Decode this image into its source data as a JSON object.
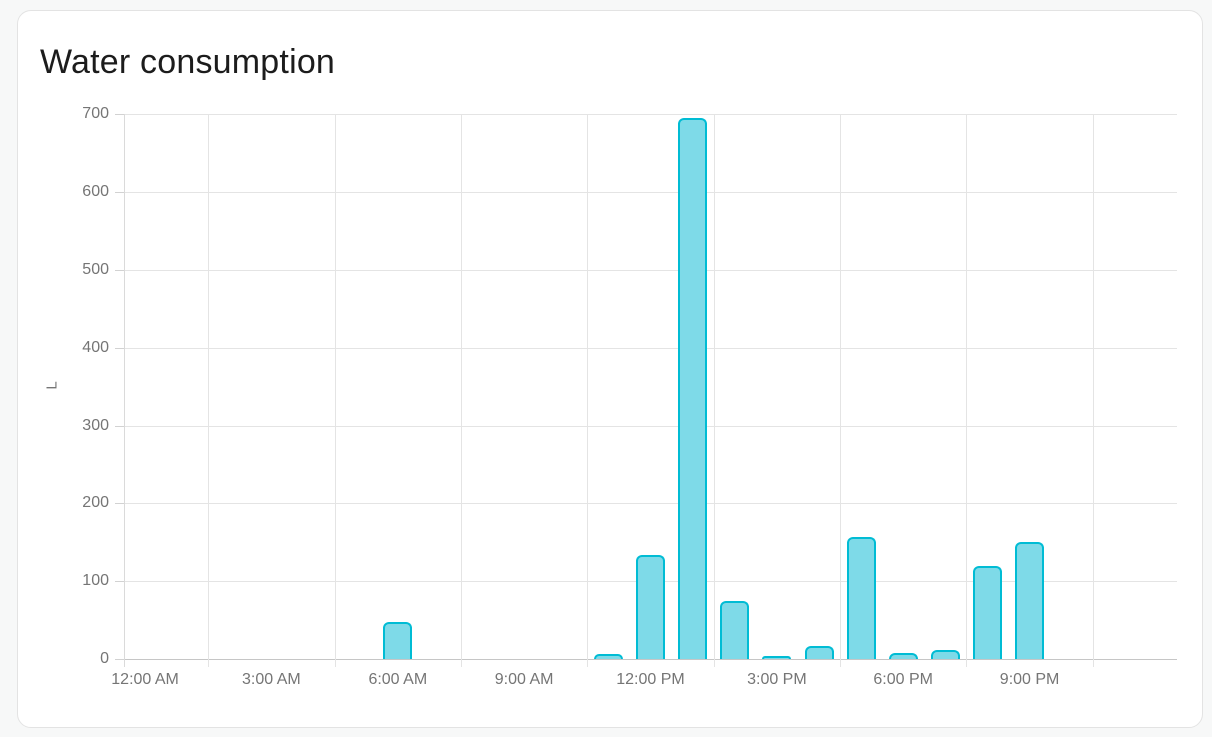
{
  "page": {
    "background": "#f7f8f8"
  },
  "card": {
    "title": "Water consumption",
    "background": "#ffffff",
    "border_color": "#e3e3e3"
  },
  "chart_data": {
    "type": "bar",
    "title": "Water consumption",
    "xlabel": "",
    "ylabel": "L",
    "unit": "L",
    "ylim": [
      0,
      700
    ],
    "y_ticks": [
      0,
      100,
      200,
      300,
      400,
      500,
      600,
      700
    ],
    "x_range_hours": [
      0,
      25
    ],
    "x_ticks": [
      {
        "hour": 0,
        "label": "12:00 AM"
      },
      {
        "hour": 3,
        "label": "3:00 AM"
      },
      {
        "hour": 6,
        "label": "6:00 AM"
      },
      {
        "hour": 9,
        "label": "9:00 AM"
      },
      {
        "hour": 12,
        "label": "12:00 PM"
      },
      {
        "hour": 15,
        "label": "3:00 PM"
      },
      {
        "hour": 18,
        "label": "6:00 PM"
      },
      {
        "hour": 21,
        "label": "9:00 PM"
      }
    ],
    "x_gridline_boundary_hours": [
      2,
      5,
      8,
      11,
      14,
      17,
      20,
      23
    ],
    "grid": true,
    "legend": "none",
    "series": [
      {
        "name": "Water consumption",
        "unit": "L",
        "hours": [
          0,
          1,
          2,
          3,
          4,
          5,
          6,
          7,
          8,
          9,
          10,
          11,
          12,
          13,
          14,
          15,
          16,
          17,
          18,
          19,
          20,
          21,
          22,
          23,
          24
        ],
        "values_by_hour": [
          0,
          0,
          0,
          0,
          0,
          0,
          48,
          0,
          0,
          0,
          0,
          7,
          134,
          695,
          74,
          4,
          17,
          157,
          8,
          11,
          120,
          150,
          0,
          0,
          0
        ]
      }
    ],
    "colors": {
      "bar_fill": "#7edae8",
      "bar_stroke": "#00bcd4",
      "grid": "#e4e4e4",
      "tick_text": "#757575"
    }
  }
}
